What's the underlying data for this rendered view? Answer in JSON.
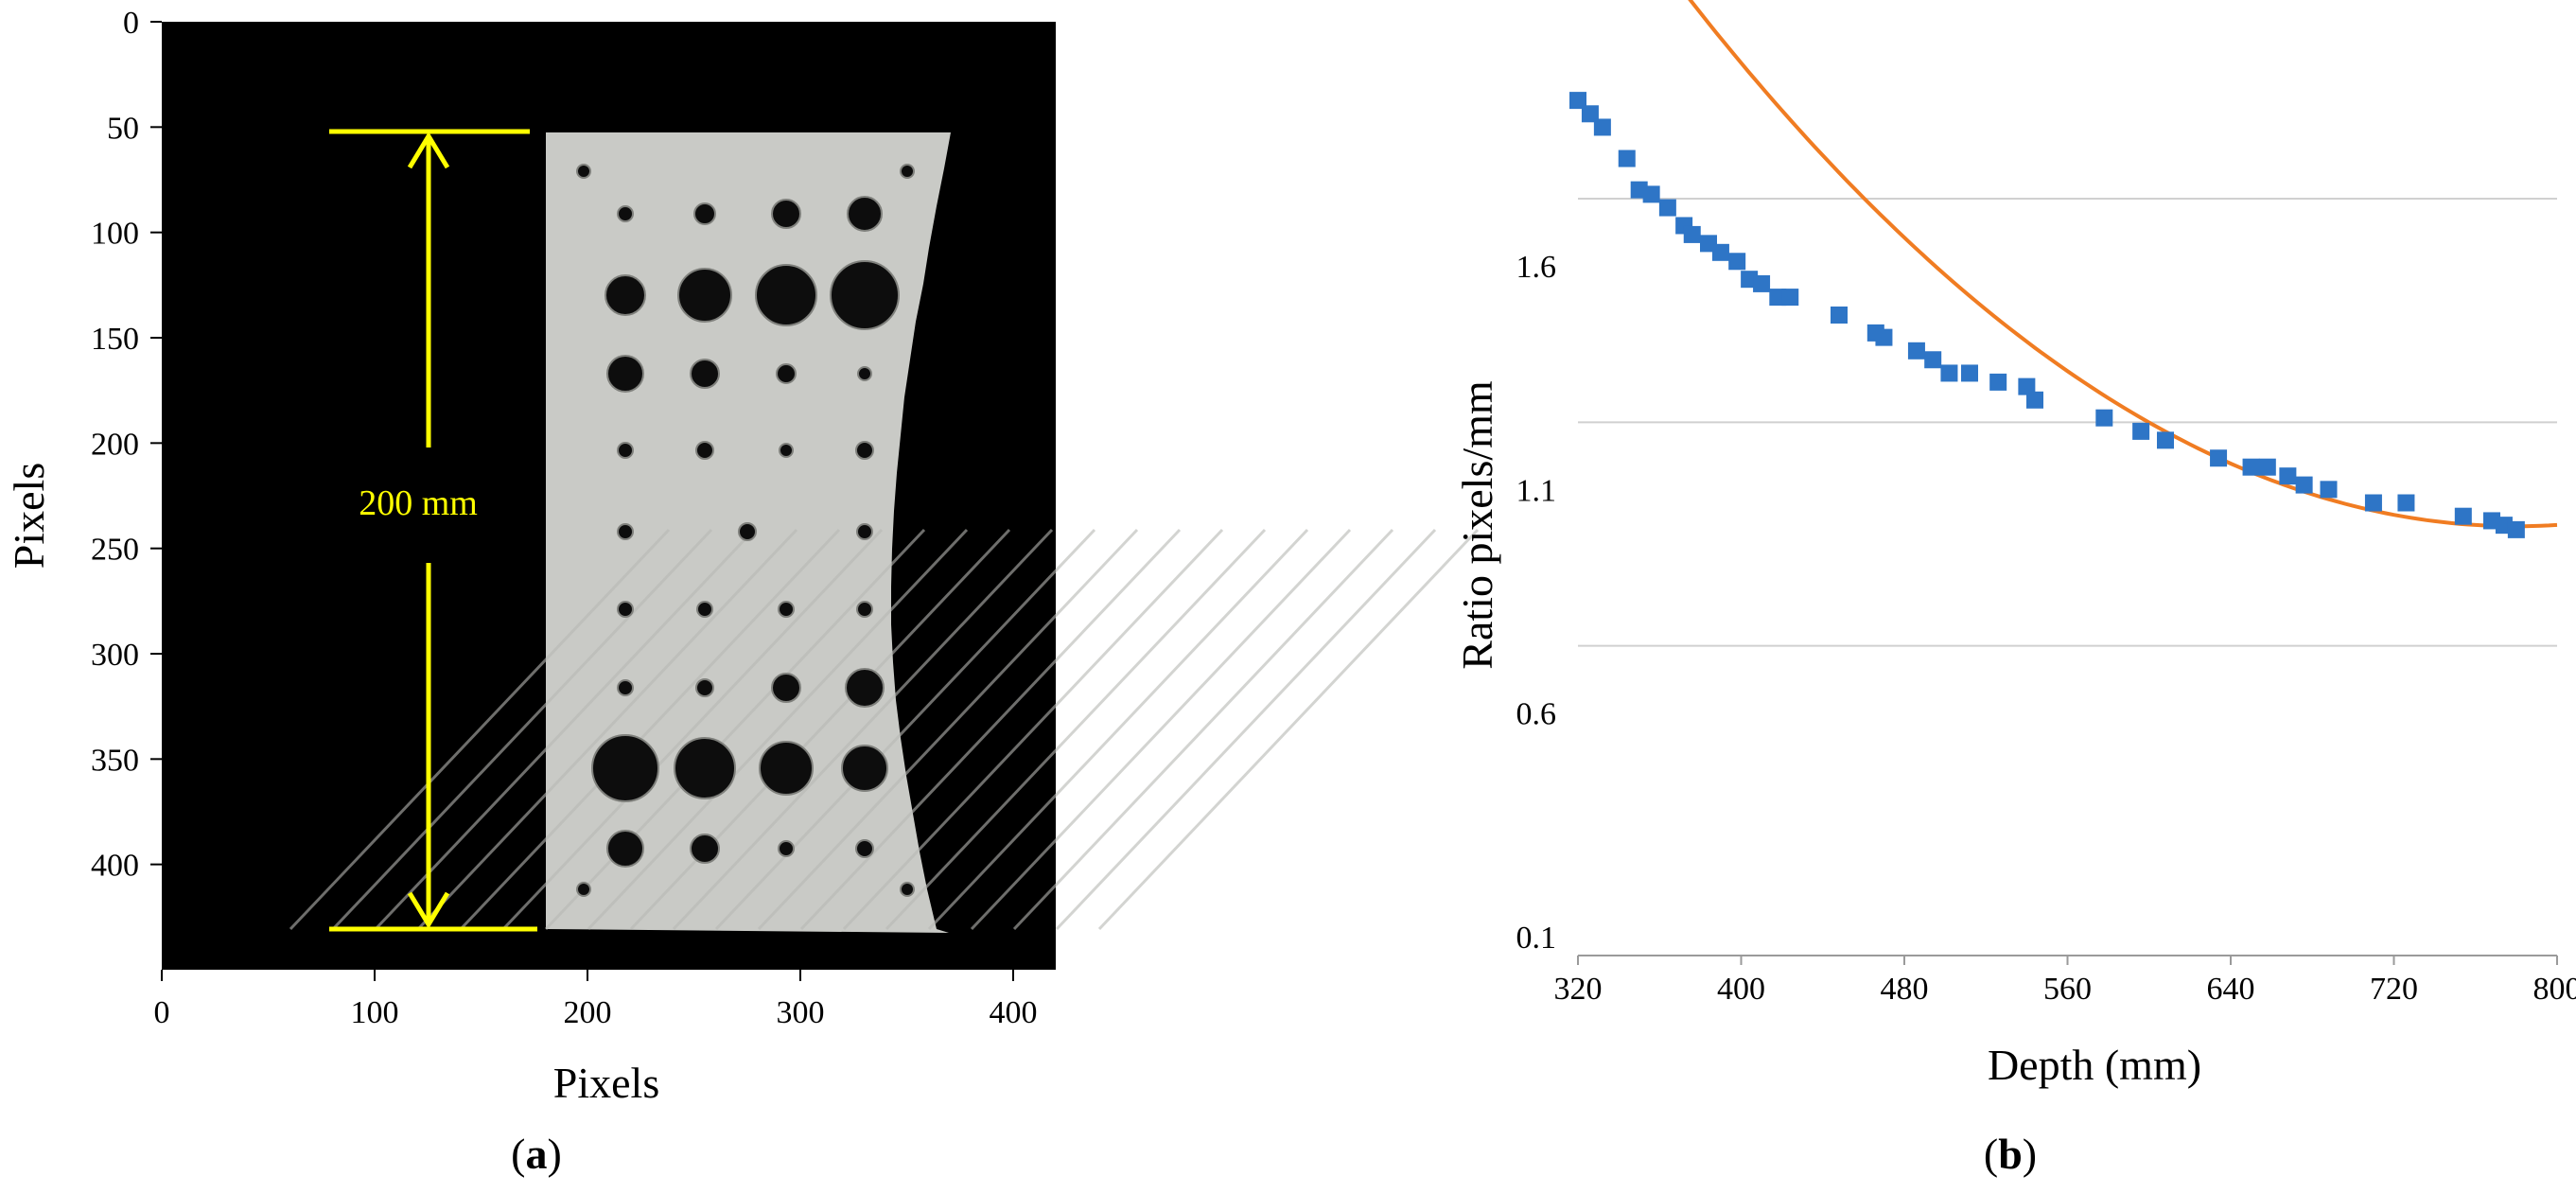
{
  "panel_a": {
    "label_open": "(",
    "label_letter": "a",
    "label_close": ")",
    "xlabel": "Pixels",
    "ylabel": "Pixels",
    "xticks": [
      "0",
      "100",
      "200",
      "300",
      "400"
    ],
    "yticks": [
      "0",
      "50",
      "100",
      "150",
      "200",
      "250",
      "300",
      "350",
      "400"
    ],
    "dimension_label": "200 mm",
    "dimension_color": "#ffff00",
    "background_color": "#000000",
    "plate_color": "#c9cac6",
    "hole_color": "#0d0d0d"
  },
  "panel_b": {
    "label_open": "(",
    "label_letter": "b",
    "label_close": ")",
    "point_color": "#2e75c6",
    "fit_color": "#f07c22",
    "grid_color": "#d0d0d0"
  },
  "chart_data": [
    {
      "type": "image",
      "panel": "a",
      "xlabel": "Pixels",
      "ylabel": "Pixels",
      "xlim": [
        0,
        420
      ],
      "ylim": [
        450,
        0
      ],
      "xticks": [
        0,
        100,
        200,
        300,
        400
      ],
      "yticks": [
        0,
        50,
        100,
        150,
        200,
        250,
        300,
        350,
        400
      ],
      "annotation": {
        "text": "200 mm",
        "from_y": 50,
        "to_y": 430,
        "x": 125
      }
    },
    {
      "type": "scatter",
      "panel": "b",
      "xlabel": "Depth (mm)",
      "ylabel": "Ratio pixels/mm",
      "xlim": [
        320,
        800
      ],
      "ylim": [
        0.05,
        2.0
      ],
      "xticks": [
        320,
        400,
        480,
        560,
        640,
        720,
        800
      ],
      "yticks": [
        0.1,
        0.6,
        1.1,
        1.6
      ],
      "grid": "horizontal",
      "series": [
        {
          "values": [
            [
              320,
              1.97
            ],
            [
              326,
              1.94
            ],
            [
              332,
              1.91
            ],
            [
              344,
              1.84
            ],
            [
              350,
              1.77
            ],
            [
              356,
              1.76
            ],
            [
              364,
              1.73
            ],
            [
              372,
              1.69
            ],
            [
              376,
              1.67
            ],
            [
              384,
              1.65
            ],
            [
              390,
              1.63
            ],
            [
              398,
              1.61
            ],
            [
              404,
              1.57
            ],
            [
              410,
              1.56
            ],
            [
              418,
              1.53
            ],
            [
              424,
              1.53
            ],
            [
              448,
              1.49
            ],
            [
              466,
              1.45
            ],
            [
              470,
              1.44
            ],
            [
              486,
              1.41
            ],
            [
              494,
              1.39
            ],
            [
              502,
              1.36
            ],
            [
              512,
              1.36
            ],
            [
              526,
              1.34
            ],
            [
              540,
              1.33
            ],
            [
              544,
              1.3
            ],
            [
              578,
              1.26
            ],
            [
              596,
              1.23
            ],
            [
              608,
              1.21
            ],
            [
              634,
              1.17
            ],
            [
              650,
              1.15
            ],
            [
              658,
              1.15
            ],
            [
              668,
              1.13
            ],
            [
              676,
              1.11
            ],
            [
              688,
              1.1
            ],
            [
              710,
              1.07
            ],
            [
              726,
              1.07
            ],
            [
              754,
              1.04
            ],
            [
              768,
              1.03
            ],
            [
              774,
              1.02
            ],
            [
              780,
              1.01
            ]
          ]
        },
        {
          "type": "line",
          "fit": "quadratic",
          "coefficients": [
            7.1875e-06,
            -0.011208,
            5.387
          ],
          "x_range": [
            320,
            800
          ]
        }
      ]
    }
  ]
}
